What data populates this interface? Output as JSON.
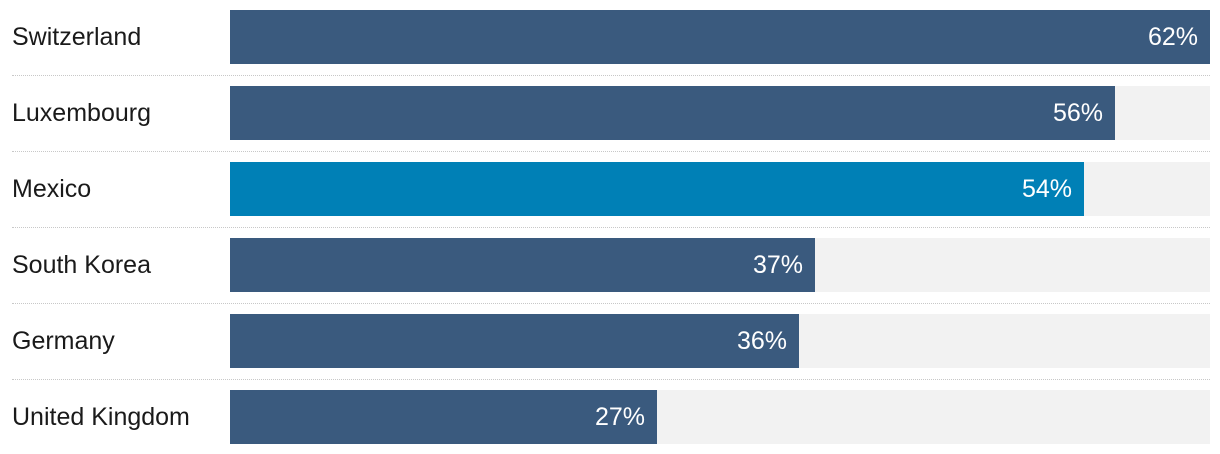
{
  "chart_data": {
    "type": "bar",
    "orientation": "horizontal",
    "categories": [
      "Switzerland",
      "Luxembourg",
      "Mexico",
      "South Korea",
      "Germany",
      "United Kingdom"
    ],
    "values": [
      62,
      56,
      54,
      37,
      36,
      27
    ],
    "value_labels": [
      "62%",
      "56%",
      "54%",
      "37%",
      "36%",
      "27%"
    ],
    "highlight": "Mexico",
    "xlim": [
      0,
      62
    ],
    "grid": false,
    "colors": {
      "bar": "#3a5a7e",
      "highlight": "#0080b6",
      "track": "#f2f2f2"
    }
  }
}
